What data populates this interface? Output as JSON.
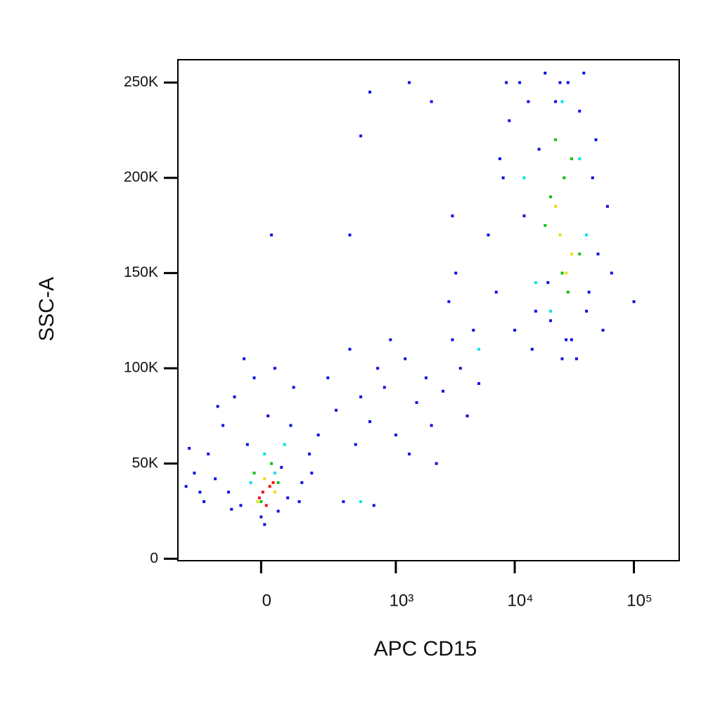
{
  "chart_data": {
    "type": "scatter",
    "xlabel": "APC CD15",
    "ylabel": "SSC-A",
    "xscale": "biexponential",
    "xlim": [
      -357,
      240000
    ],
    "xticks": [
      0,
      {
        "value": 1000,
        "label": "10³"
      },
      {
        "value": 10000,
        "label": "10⁴"
      },
      {
        "value": 100000,
        "label": "10⁵"
      }
    ],
    "ylim": [
      -1000,
      262000
    ],
    "yticks": [
      0,
      {
        "value": 50000,
        "label": "50K"
      },
      {
        "value": 100000,
        "label": "100K"
      },
      {
        "value": 150000,
        "label": "150K"
      },
      {
        "value": 200000,
        "label": "200K"
      },
      {
        "value": 250000,
        "label": "250K"
      }
    ],
    "series": [
      {
        "color": "#1010e8",
        "x": [
          -300,
          -250,
          -200,
          -180,
          -150,
          -120,
          -100,
          -80,
          -60,
          -40,
          -20,
          0,
          20,
          40,
          60,
          80,
          100,
          130,
          160,
          200,
          -280,
          -220,
          -140,
          -90,
          -50,
          10,
          50,
          90,
          120,
          170,
          250,
          300,
          400,
          500,
          600,
          700,
          800,
          1000,
          1200,
          1500,
          1800,
          2000,
          2500,
          3000,
          3500,
          4000,
          4500,
          5000,
          350,
          450,
          650,
          900,
          1300,
          2200,
          2800,
          3200,
          600,
          500,
          1300,
          2000,
          400,
          3000,
          30,
          100000,
          6000,
          7000,
          8000,
          9000,
          10000,
          11000,
          12000,
          14000,
          16000,
          18000,
          20000,
          22000,
          25000,
          28000,
          30000,
          35000,
          40000,
          45000,
          50000,
          55000,
          60000,
          8500,
          13000,
          19000,
          27000,
          38000,
          48000,
          65000,
          7500,
          15000,
          24000,
          33000,
          42000
        ],
        "y": [
          38000,
          45000,
          30000,
          55000,
          42000,
          70000,
          35000,
          85000,
          28000,
          60000,
          95000,
          22000,
          75000,
          100000,
          48000,
          32000,
          90000,
          40000,
          55000,
          65000,
          58000,
          35000,
          80000,
          26000,
          105000,
          18000,
          25000,
          70000,
          30000,
          45000,
          95000,
          78000,
          110000,
          85000,
          72000,
          100000,
          90000,
          65000,
          105000,
          82000,
          95000,
          70000,
          88000,
          115000,
          100000,
          75000,
          120000,
          92000,
          30000,
          60000,
          28000,
          115000,
          55000,
          50000,
          135000,
          150000,
          245000,
          222000,
          250000,
          240000,
          170000,
          180000,
          170000,
          135000,
          170000,
          140000,
          200000,
          230000,
          120000,
          250000,
          180000,
          110000,
          215000,
          255000,
          125000,
          240000,
          105000,
          250000,
          115000,
          235000,
          130000,
          200000,
          160000,
          120000,
          185000,
          250000,
          240000,
          145000,
          115000,
          255000,
          220000,
          150000,
          210000,
          130000,
          250000,
          105000,
          140000
        ]
      },
      {
        "color": "#00e0f0",
        "x": [
          10,
          40,
          -30,
          70,
          20000,
          25000,
          15000,
          35000,
          12000,
          40000,
          500,
          5000
        ],
        "y": [
          55000,
          45000,
          40000,
          60000,
          130000,
          240000,
          145000,
          210000,
          200000,
          170000,
          30000,
          110000
        ]
      },
      {
        "color": "#10c010",
        "x": [
          0,
          30,
          -20,
          50,
          20000,
          25000,
          30000,
          22000,
          28000,
          18000,
          35000,
          26000
        ],
        "y": [
          30000,
          50000,
          45000,
          40000,
          190000,
          150000,
          210000,
          220000,
          140000,
          175000,
          160000,
          200000
        ]
      },
      {
        "color": "#e8e010",
        "x": [
          10,
          40,
          -10,
          24000,
          30000,
          27000,
          22000
        ],
        "y": [
          42000,
          35000,
          30000,
          170000,
          160000,
          150000,
          185000
        ]
      },
      {
        "color": "#f01010",
        "x": [
          5,
          25,
          15,
          -5,
          35
        ],
        "y": [
          35000,
          38000,
          28000,
          32000,
          40000
        ]
      }
    ]
  }
}
